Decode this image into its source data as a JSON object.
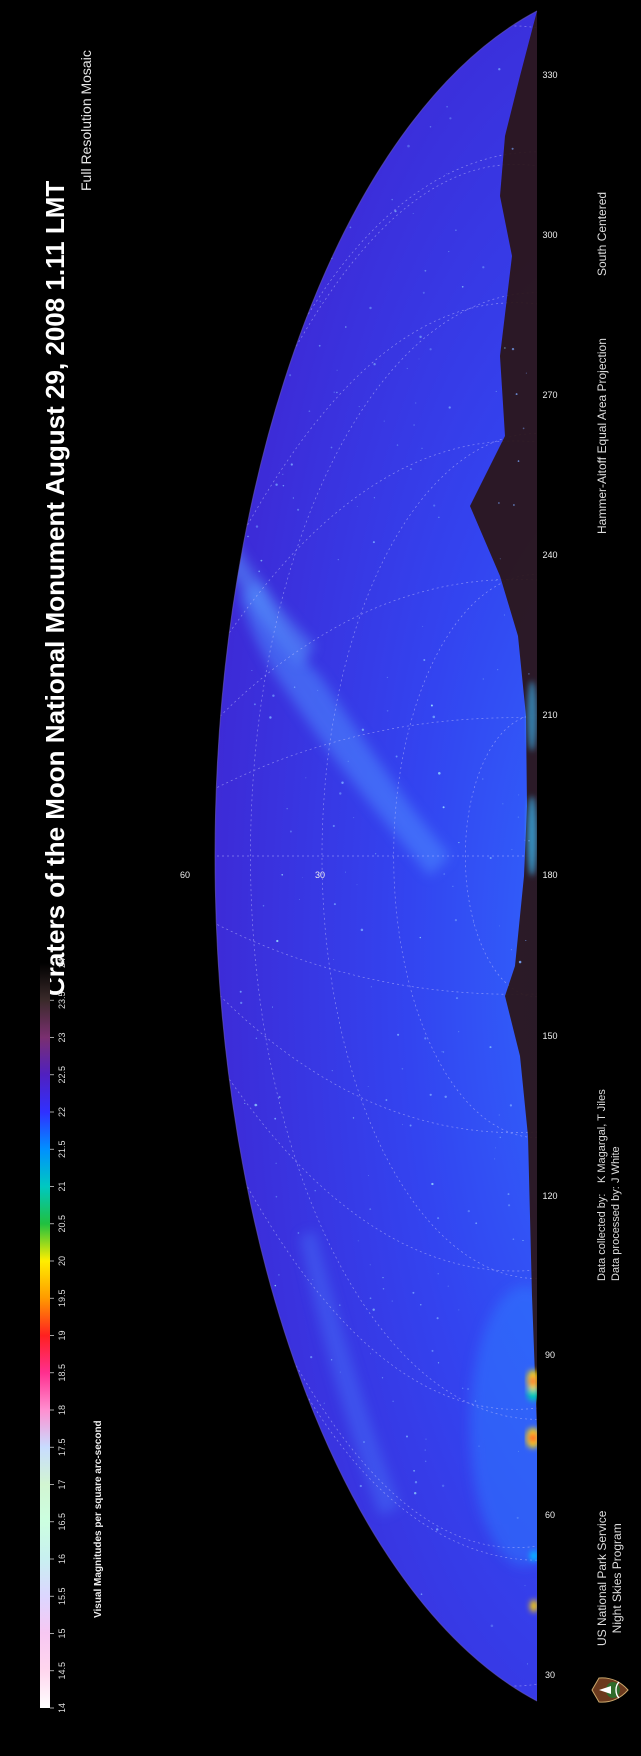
{
  "title": "Craters of the Moon National Monument August 29, 2008 1.11 LMT",
  "subtitle": "Full Resolution Mosaic",
  "projection": "Hammer-Aitoff Equal Area Projection",
  "orientation": "South Centered",
  "credits": {
    "collected_label": "Data collected by:",
    "collected_value": "K Magargal, T Jiles",
    "processed_label": "Data processed by:",
    "processed_value": "J White"
  },
  "organization": {
    "line1": "US National Park Service",
    "line2": "Night Skies Program"
  },
  "scale": {
    "label": "Visual Magnitudes per square arc-second",
    "ticks": [
      "14",
      "14.5",
      "15",
      "15.5",
      "16",
      "16.5",
      "17",
      "17.5",
      "18",
      "18.5",
      "19",
      "19.5",
      "20",
      "20.5",
      "21",
      "21.5",
      "22",
      "22.5",
      "23",
      "23.5",
      "24"
    ],
    "colors": [
      "#ffffff",
      "#ffd6ee",
      "#f7c7f2",
      "#dcd6ff",
      "#c8f0f0",
      "#ccffe0",
      "#d2f5d2",
      "#c8dcff",
      "#ff8fd0",
      "#ff2f8f",
      "#ff2020",
      "#ff9a00",
      "#ffee00",
      "#20c040",
      "#00c8c0",
      "#0090ff",
      "#3030ff",
      "#5020c0",
      "#7a2f70",
      "#3a2a2a",
      "#000000"
    ]
  },
  "azimuth_labels": [
    "30",
    "60",
    "90",
    "120",
    "150",
    "180",
    "210",
    "240",
    "270",
    "300",
    "330"
  ],
  "altitude_labels": [
    "60",
    "30"
  ],
  "colors": {
    "sky_bright": "#2d5cff",
    "sky_mid": "#3a2ee0",
    "sky_edge": "#5a3bc8",
    "horizon": "#3a2020"
  }
}
